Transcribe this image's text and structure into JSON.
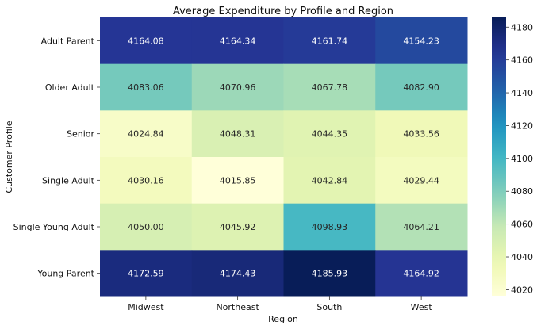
{
  "chart_data": {
    "type": "heatmap",
    "title": "Average Expenditure by Profile and Region",
    "xlabel": "Region",
    "ylabel": "Customer Profile",
    "columns": [
      "Midwest",
      "Northeast",
      "South",
      "West"
    ],
    "rows": [
      "Adult Parent",
      "Older Adult",
      "Senior",
      "Single Adult",
      "Single Young Adult",
      "Young Parent"
    ],
    "values": [
      [
        4164.08,
        4164.34,
        4161.74,
        4154.23
      ],
      [
        4083.06,
        4070.96,
        4067.78,
        4082.9
      ],
      [
        4024.84,
        4048.31,
        4044.35,
        4033.56
      ],
      [
        4030.16,
        4015.85,
        4042.84,
        4029.44
      ],
      [
        4050.0,
        4045.92,
        4098.93,
        4064.21
      ],
      [
        4172.59,
        4174.43,
        4185.93,
        4164.92
      ]
    ],
    "colorbar": {
      "range": [
        4015.85,
        4185.93
      ],
      "ticks": [
        4020,
        4040,
        4060,
        4080,
        4100,
        4120,
        4140,
        4160,
        4180
      ],
      "colormap": "YlGnBu"
    }
  }
}
